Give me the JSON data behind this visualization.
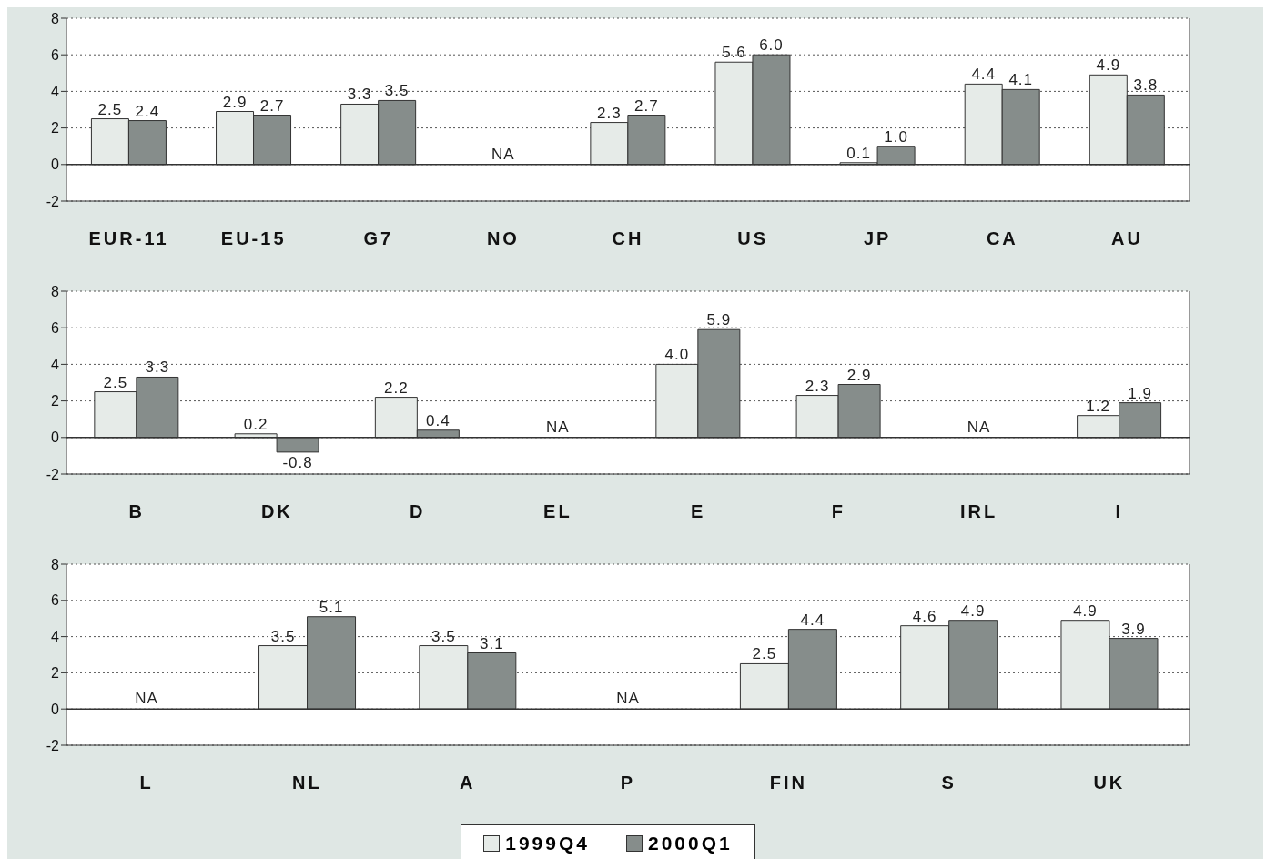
{
  "chart_data": [
    {
      "type": "bar",
      "categories": [
        "EUR-11",
        "EU-15",
        "G7",
        "NO",
        "CH",
        "US",
        "JP",
        "CA",
        "AU"
      ],
      "series": [
        {
          "color": "#e6ebe8",
          "values": [
            2.5,
            2.9,
            3.3,
            null,
            2.3,
            5.6,
            0.1,
            4.4,
            4.9
          ],
          "value_labels": [
            "2.5",
            "2.9",
            "3.3",
            null,
            "2.3",
            "5.6",
            "0.1",
            "4.4",
            "4.9"
          ]
        },
        {
          "color": "#868d8b",
          "values": [
            2.4,
            2.7,
            3.5,
            null,
            2.7,
            6.0,
            1.0,
            4.1,
            3.8
          ],
          "value_labels": [
            "2.4",
            "2.7",
            "3.5",
            null,
            "2.7",
            "6.0",
            "1.0",
            "4.1",
            "3.8"
          ]
        }
      ],
      "ylim": [
        -2,
        8
      ],
      "yticks": [
        -2,
        0,
        2,
        4,
        6,
        8
      ],
      "grid": "y",
      "annotations": [
        "NA"
      ]
    },
    {
      "type": "bar",
      "categories": [
        "B",
        "DK",
        "D",
        "EL",
        "E",
        "F",
        "IRL",
        "I"
      ],
      "series": [
        {
          "color": "#e6ebe8",
          "values": [
            2.5,
            0.2,
            2.2,
            null,
            4.0,
            2.3,
            null,
            1.2
          ],
          "value_labels": [
            "2.5",
            "0.2",
            "2.2",
            null,
            "4.0",
            "2.3",
            null,
            "1.2"
          ]
        },
        {
          "color": "#868d8b",
          "values": [
            3.3,
            -0.8,
            0.4,
            null,
            5.9,
            2.9,
            null,
            1.9
          ],
          "value_labels": [
            "3.3",
            "-0.8",
            "0.4",
            null,
            "5.9",
            "2.9",
            null,
            "1.9"
          ]
        }
      ],
      "ylim": [
        -2,
        8
      ],
      "yticks": [
        -2,
        0,
        2,
        4,
        6,
        8
      ],
      "grid": "y",
      "annotations": [
        "NA",
        "NA"
      ]
    },
    {
      "type": "bar",
      "categories": [
        "L",
        "NL",
        "A",
        "P",
        "FIN",
        "S",
        "UK"
      ],
      "series": [
        {
          "name": "1999Q4",
          "color": "#e6ebe8",
          "values": [
            null,
            3.5,
            3.5,
            null,
            2.5,
            4.6,
            4.9
          ],
          "value_labels": [
            null,
            "3.5",
            "3.5",
            null,
            "2.5",
            "4.6",
            "4.9"
          ]
        },
        {
          "name": "2000Q1",
          "color": "#868d8b",
          "values": [
            null,
            5.1,
            3.1,
            null,
            4.4,
            4.9,
            3.9
          ],
          "value_labels": [
            null,
            "5.1",
            "3.1",
            null,
            "4.4",
            "4.9",
            "3.9"
          ]
        }
      ],
      "ylim": [
        -2,
        8
      ],
      "yticks": [
        -2,
        0,
        2,
        4,
        6,
        8
      ],
      "grid": "y",
      "legend": "bottom",
      "annotations": [
        "NA",
        "NA"
      ]
    }
  ]
}
